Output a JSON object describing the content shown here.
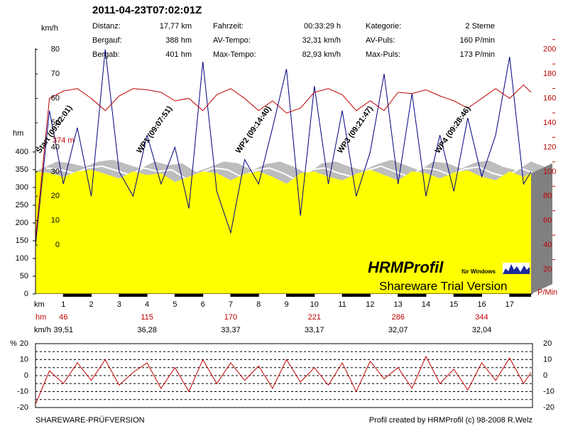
{
  "header": {
    "title": "2011-04-23T07:02:01Z"
  },
  "stats": [
    [
      {
        "label": "Distanz:",
        "value": "17,77 km"
      },
      {
        "label": "Fahrzeit:",
        "value": "00:33:29 h"
      },
      {
        "label": "Kategorie:",
        "value": "2 Sterne"
      }
    ],
    [
      {
        "label": "Bergauf:",
        "value": "388 hm"
      },
      {
        "label": "AV-Tempo:",
        "value": "32,31 km/h"
      },
      {
        "label": "AV-Puls:",
        "value": "160 P/min"
      }
    ],
    [
      {
        "label": "Bergab:",
        "value": "401 hm"
      },
      {
        "label": "Max-Tempo:",
        "value": "82,93 km/h"
      },
      {
        "label": "Max-Puls:",
        "value": "173 P/min"
      }
    ]
  ],
  "chart_data": [
    {
      "type": "line",
      "xlabel": "km",
      "ylabel": "hm",
      "y2label": "km/h",
      "y3label": "P/Min",
      "xlim": [
        0,
        17.77
      ],
      "xticks": [
        1,
        2,
        3,
        4,
        5,
        6,
        7,
        8,
        9,
        10,
        11,
        12,
        13,
        14,
        15,
        16,
        17
      ],
      "ylim": [
        0,
        692
      ],
      "yticks": [
        0,
        50,
        100,
        150,
        200,
        250,
        300,
        350,
        400
      ],
      "y2lim": [
        -20,
        80.5
      ],
      "y2ticks": [
        0,
        10,
        20,
        30,
        40,
        50,
        60,
        70,
        80
      ],
      "y3lim": [
        0,
        201
      ],
      "y3ticks": [
        20,
        40,
        60,
        80,
        100,
        120,
        140,
        160,
        180,
        200
      ],
      "x": [
        0,
        0.5,
        1,
        1.5,
        2,
        2.5,
        3,
        3.5,
        4,
        4.5,
        5,
        5.5,
        6,
        6.5,
        7,
        7.5,
        8,
        8.5,
        9,
        9.5,
        10,
        10.5,
        11,
        11.5,
        12,
        12.5,
        13,
        13.5,
        14,
        14.5,
        15,
        15.5,
        16,
        16.5,
        17,
        17.5,
        17.77
      ],
      "series": [
        {
          "type": "area",
          "axis": "y",
          "color": "#ffff00",
          "values": [
            345,
            340,
            330,
            345,
            350,
            338,
            325,
            345,
            335,
            340,
            315,
            330,
            345,
            340,
            320,
            338,
            345,
            330,
            310,
            340,
            345,
            330,
            320,
            338,
            350,
            335,
            320,
            345,
            340,
            325,
            342,
            348,
            330,
            320,
            345,
            330,
            340
          ]
        },
        {
          "type": "line",
          "axis": "y2",
          "color": "#000080",
          "values": [
            0,
            55,
            25,
            48,
            20,
            80,
            30,
            20,
            45,
            25,
            40,
            15,
            75,
            22,
            5,
            35,
            25,
            48,
            72,
            12,
            65,
            25,
            55,
            20,
            38,
            70,
            25,
            62,
            20,
            45,
            22,
            52,
            28,
            45,
            77,
            25,
            30
          ]
        },
        {
          "type": "line",
          "axis": "y3",
          "color": "#c00000",
          "values": [
            45,
            160,
            166,
            168,
            160,
            150,
            162,
            168,
            167,
            165,
            158,
            160,
            150,
            163,
            168,
            160,
            150,
            158,
            148,
            152,
            165,
            168,
            163,
            150,
            158,
            150,
            165,
            164,
            167,
            162,
            158,
            152,
            160,
            168,
            160,
            171,
            165
          ]
        }
      ],
      "annotations": [
        {
          "text": "Start (09:02:01)",
          "x": 0.1
        },
        {
          "text": "WP1 (09:07:51)",
          "x": 3.7
        },
        {
          "text": "WP2 (09:14:40)",
          "x": 7.25
        },
        {
          "text": "WP3 (09:21:47)",
          "x": 10.9
        },
        {
          "text": "WP4 (09:28:46)",
          "x": 14.4
        }
      ],
      "start_label": "374 m",
      "summary_rows": [
        {
          "label": "hm",
          "x": [
            1,
            4,
            7,
            10,
            13,
            16
          ],
          "values": [
            46,
            115,
            170,
            221,
            286,
            344
          ]
        },
        {
          "label": "km/h",
          "x": [
            1,
            4,
            7,
            10,
            13,
            16
          ],
          "values": [
            {
              "value": 39.51,
              "label": "39,51"
            },
            {
              "value": 36.28,
              "label": "36,28"
            },
            {
              "value": 33.37,
              "label": "33,37"
            },
            {
              "value": 33.17,
              "label": "33,17"
            },
            {
              "value": 32.07,
              "label": "32,07"
            },
            {
              "value": 32.04,
              "label": "32,04"
            }
          ]
        }
      ]
    },
    {
      "type": "line",
      "ylabel": "%",
      "xlim": [
        0,
        17.77
      ],
      "ylim": [
        -20,
        20
      ],
      "yticks": [
        -20,
        -10,
        0,
        10,
        20
      ],
      "minor_yticks": [
        -15,
        -5,
        5,
        15
      ],
      "grid": true,
      "color": "#c00000",
      "x": [
        0,
        0.5,
        1,
        1.5,
        2,
        2.5,
        3,
        3.5,
        4,
        4.5,
        5,
        5.5,
        6,
        6.5,
        7,
        7.5,
        8,
        8.5,
        9,
        9.5,
        10,
        10.5,
        11,
        11.5,
        12,
        12.5,
        13,
        13.5,
        14,
        14.5,
        15,
        15.5,
        16,
        16.5,
        17,
        17.5,
        17.77
      ],
      "values": [
        -18,
        3,
        -5,
        8,
        -3,
        10,
        -6,
        2,
        8,
        -8,
        5,
        -10,
        10,
        -5,
        8,
        -3,
        6,
        -8,
        10,
        -4,
        5,
        -6,
        8,
        -10,
        9,
        -2,
        5,
        -8,
        12,
        -5,
        4,
        -9,
        8,
        -3,
        11,
        -5,
        2
      ]
    }
  ],
  "logo": {
    "title": "HRMProfil",
    "subtitle": "für Windows",
    "notice": "Shareware Trial  Version"
  },
  "footer": {
    "left": "SHAREWARE-PRÜFVERSION",
    "right": "Profil created by HRMProfil (c) 98-2008 R.Welz"
  }
}
